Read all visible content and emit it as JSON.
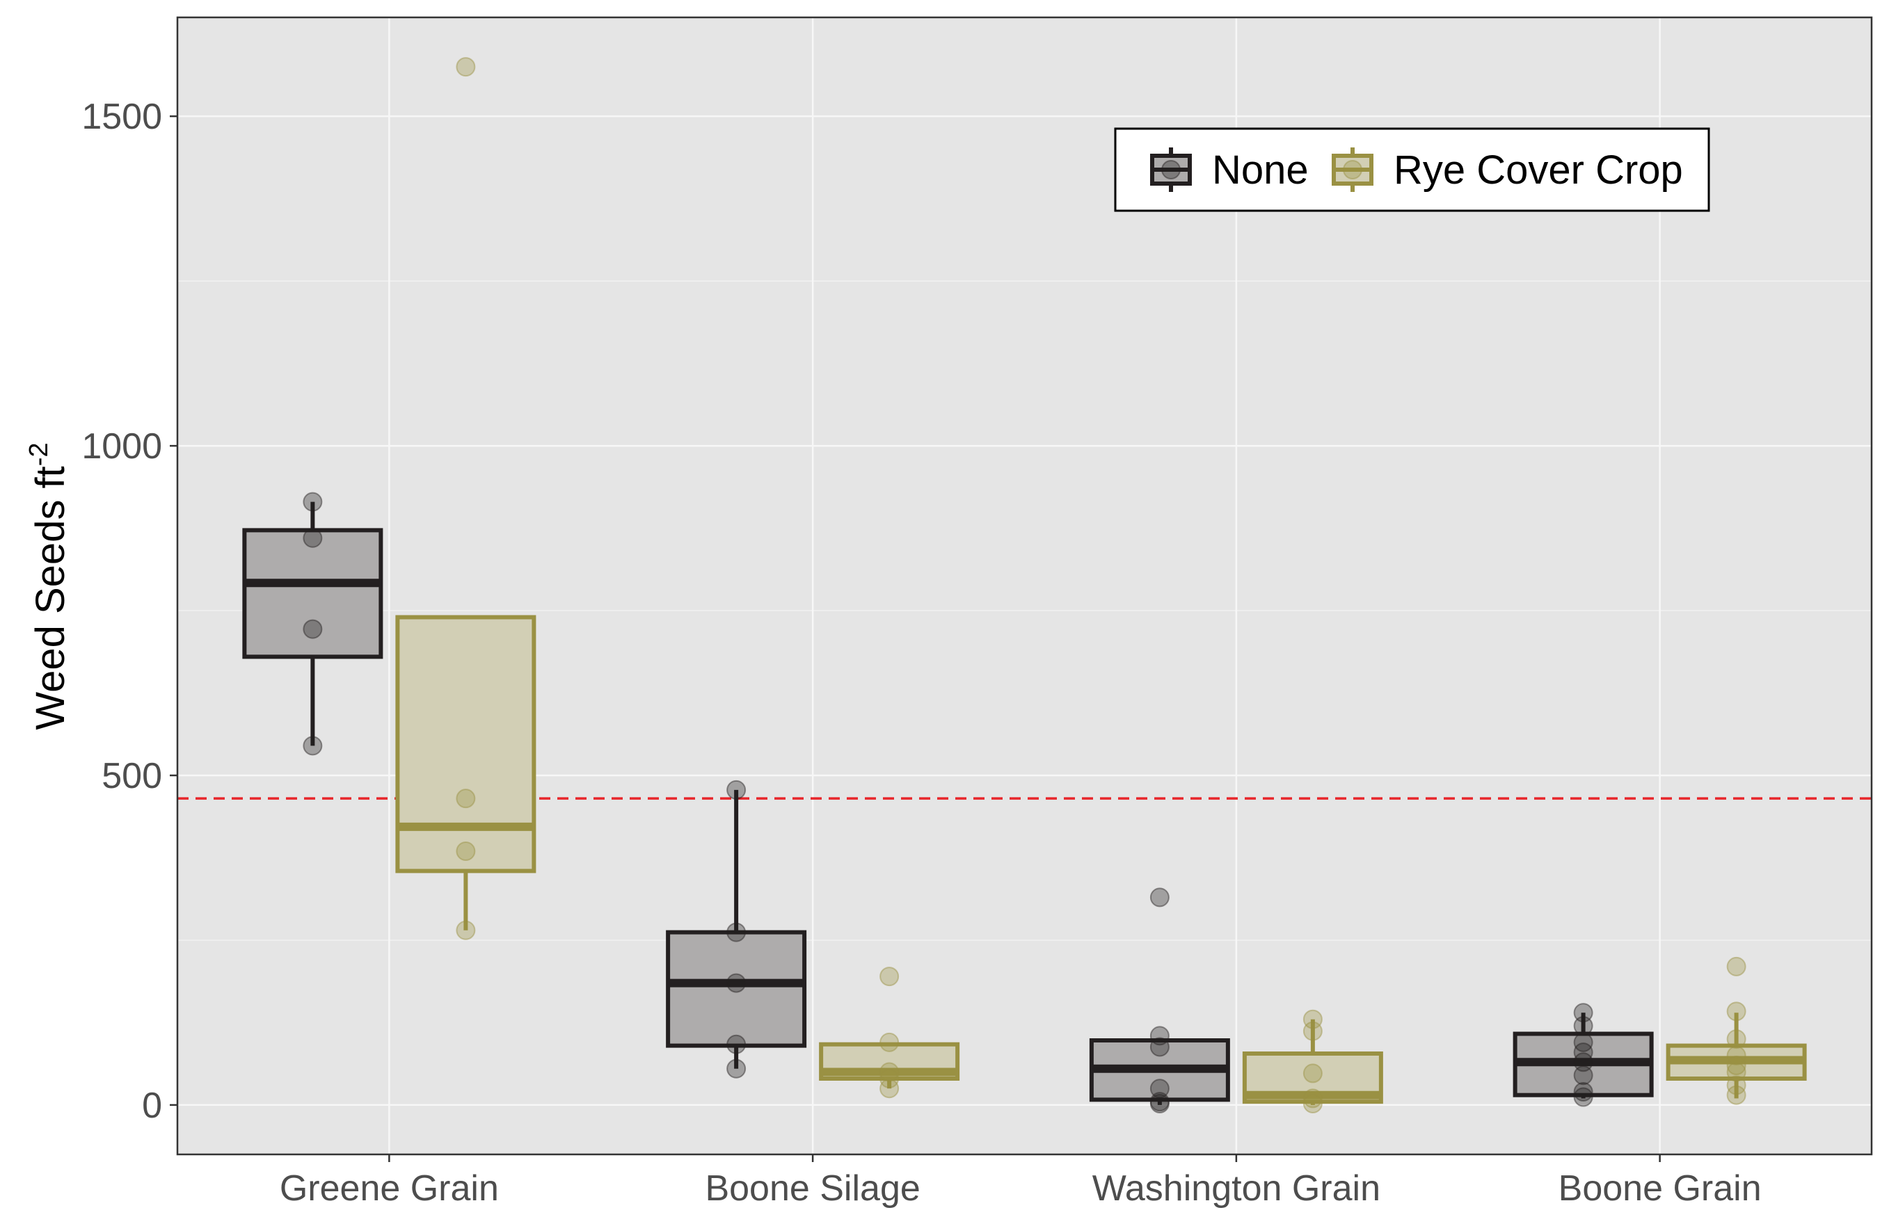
{
  "chart_data": {
    "type": "box",
    "title": "",
    "xlabel": "",
    "ylabel": "Weed Seeds ft",
    "ylabel_superscript": "-2",
    "categories": [
      "Greene Grain",
      "Boone Silage",
      "Washington Grain",
      "Boone Grain"
    ],
    "y_ticks": [
      0,
      500,
      1000,
      1500
    ],
    "ylim": [
      -75,
      1650
    ],
    "grid": true,
    "reference_line": {
      "y": 465,
      "style": "dashed",
      "color": "#e8262b"
    },
    "legend": {
      "position": "top-right",
      "entries": [
        "None",
        "Rye Cover Crop"
      ]
    },
    "series": [
      {
        "name": "None",
        "color": "#231f20",
        "fill": "#aeacac",
        "boxes": [
          {
            "q1": 680,
            "median": 792,
            "q3": 872,
            "whisker_low": 545,
            "whisker_high": 915,
            "points": [
              915,
              860,
              722,
              545
            ]
          },
          {
            "q1": 90,
            "median": 185,
            "q3": 262,
            "whisker_low": 55,
            "whisker_high": 478,
            "points": [
              478,
              262,
              185,
              92,
              55
            ]
          },
          {
            "q1": 8,
            "median": 55,
            "q3": 98,
            "whisker_low": 0,
            "whisker_high": 98,
            "points": [
              315,
              105,
              88,
              25,
              5,
              2
            ]
          },
          {
            "q1": 15,
            "median": 65,
            "q3": 108,
            "whisker_low": 10,
            "whisker_high": 140,
            "points": [
              140,
              120,
              95,
              80,
              65,
              45,
              20,
              12
            ]
          }
        ]
      },
      {
        "name": "Rye Cover Crop",
        "color": "#9a9143",
        "fill": "#d2cfb5",
        "boxes": [
          {
            "q1": 355,
            "median": 422,
            "q3": 740,
            "whisker_low": 265,
            "whisker_high": 740,
            "points": [
              1575,
              465,
              385,
              265
            ]
          },
          {
            "q1": 40,
            "median": 50,
            "q3": 92,
            "whisker_low": 25,
            "whisker_high": 92,
            "points": [
              195,
              95,
              50,
              40,
              25
            ]
          },
          {
            "q1": 5,
            "median": 15,
            "q3": 78,
            "whisker_low": 0,
            "whisker_high": 130,
            "points": [
              130,
              112,
              48,
              10,
              2
            ]
          },
          {
            "q1": 40,
            "median": 68,
            "q3": 90,
            "whisker_low": 10,
            "whisker_high": 140,
            "points": [
              210,
              142,
              100,
              75,
              60,
              50,
              30,
              15
            ]
          }
        ]
      }
    ]
  }
}
